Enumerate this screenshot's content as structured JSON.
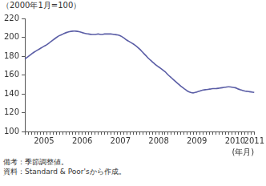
{
  "chart_data": {
    "type": "line",
    "y_label": "（2000年1月=100）",
    "x_label": "(年月)",
    "notes": [
      "備考：季節調整値。",
      "資料：Standard & Poor'sから作成。"
    ],
    "color": "#5b5ea6",
    "grid": false,
    "ylim": [
      100,
      220
    ],
    "yticks": [
      100,
      120,
      140,
      160,
      180,
      200,
      220
    ],
    "categories": [
      null,
      null,
      null,
      null,
      null,
      null,
      "2005",
      null,
      null,
      null,
      null,
      null,
      null,
      null,
      null,
      null,
      null,
      null,
      "2006",
      null,
      null,
      null,
      null,
      null,
      null,
      null,
      null,
      null,
      null,
      null,
      "2007",
      null,
      null,
      null,
      null,
      null,
      null,
      null,
      null,
      null,
      null,
      null,
      "2008",
      null,
      null,
      null,
      null,
      null,
      null,
      null,
      null,
      null,
      null,
      null,
      "2009",
      null,
      null,
      null,
      null,
      null,
      null,
      null,
      null,
      null,
      null,
      null,
      "2010",
      null,
      null,
      null,
      null,
      null,
      "2011"
    ],
    "values": [
      177,
      179.5,
      182,
      184.5,
      186.5,
      188.5,
      190.5,
      192.5,
      195,
      197.5,
      200,
      202,
      203.5,
      205,
      206,
      206.5,
      206.5,
      206,
      205,
      204,
      203.5,
      203,
      203,
      203.5,
      203,
      203.5,
      203.5,
      203.5,
      203,
      202.5,
      201.5,
      199.5,
      197,
      195,
      193,
      190.5,
      187.5,
      184,
      180.5,
      177,
      174,
      171,
      168.5,
      166,
      163.5,
      160,
      157,
      154,
      151,
      148,
      145.5,
      143,
      141.5,
      141,
      142,
      143,
      144,
      144.5,
      145,
      145.5,
      145.5,
      146,
      146.5,
      147,
      147.5,
      147,
      146.5,
      145,
      144,
      143,
      142.5,
      142,
      141.5
    ]
  }
}
